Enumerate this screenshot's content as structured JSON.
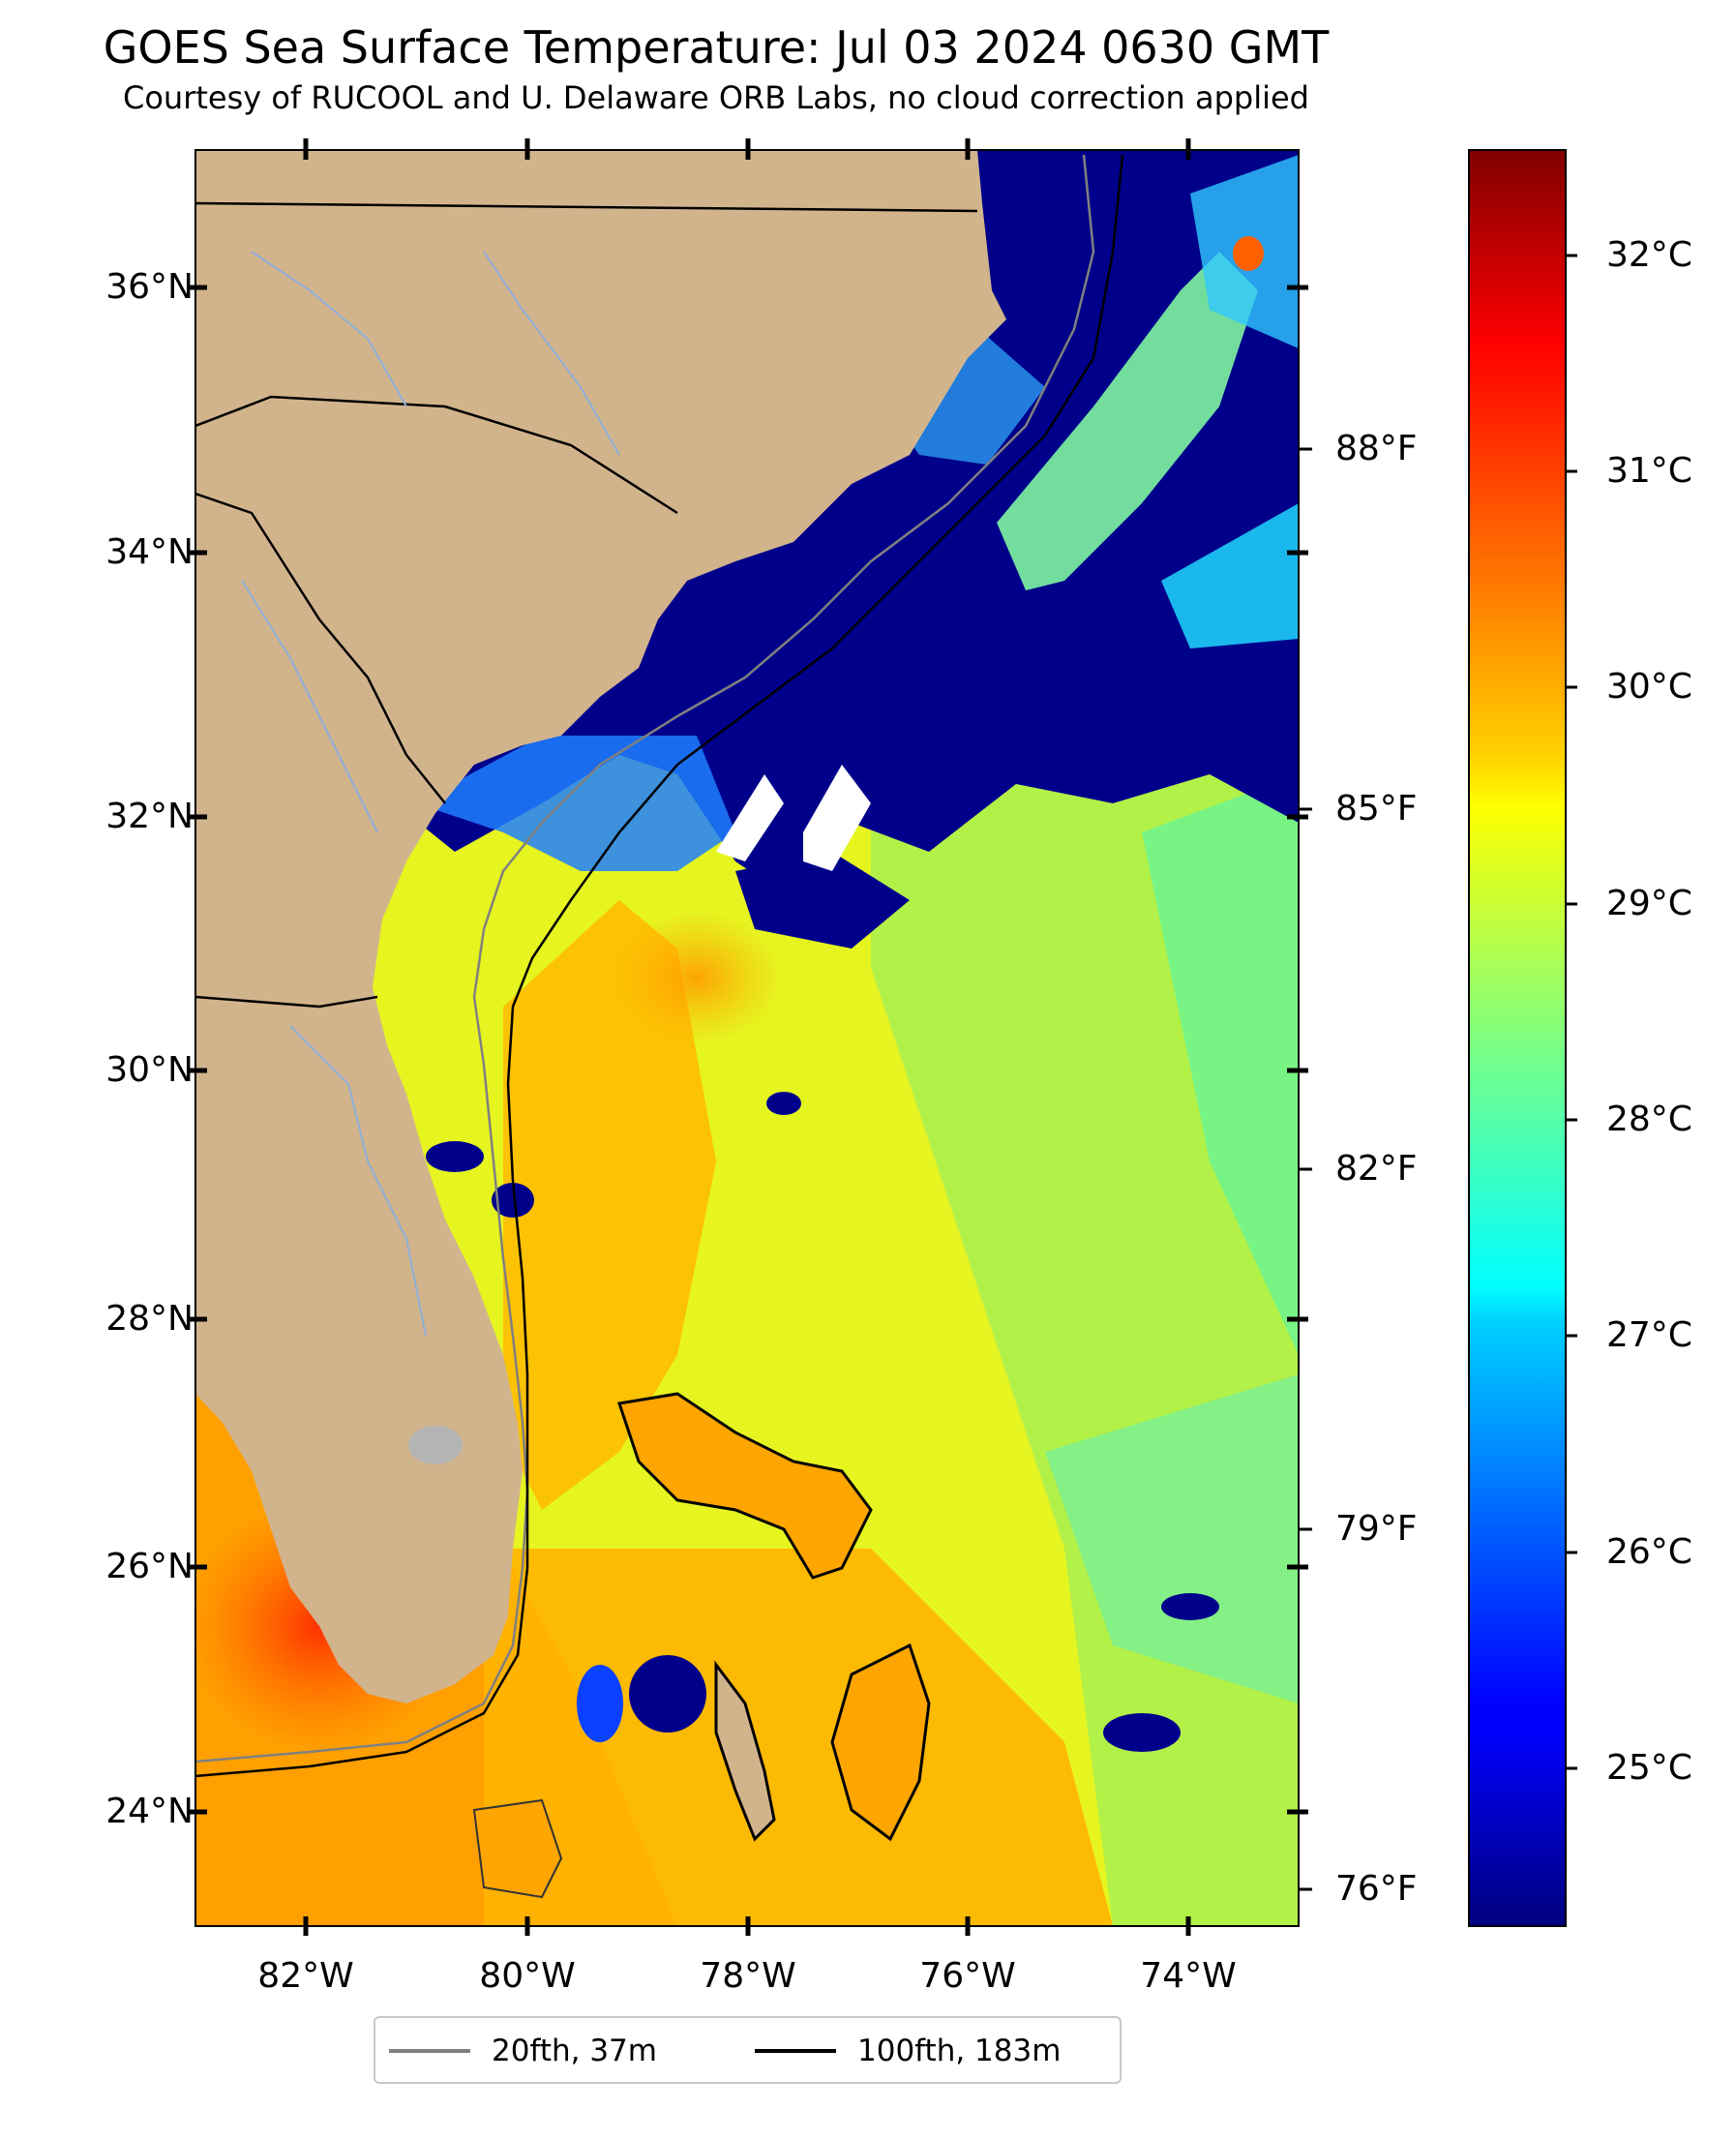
{
  "title": "GOES Sea Surface Temperature: Jul 03 2024 0630 GMT",
  "subtitle": "Courtesy of RUCOOL and U. Delaware ORB Labs, no cloud correction applied",
  "lat_labels": [
    "36°N",
    "34°N",
    "32°N",
    "30°N",
    "28°N",
    "26°N",
    "24°N"
  ],
  "lon_labels": [
    "82°W",
    "80°W",
    "78°W",
    "76°W",
    "74°W"
  ],
  "fahrenheit_labels": [
    "88°F",
    "85°F",
    "82°F",
    "79°F",
    "76°F"
  ],
  "celsius_labels": [
    "32°C",
    "31°C",
    "30°C",
    "29°C",
    "28°C",
    "27°C",
    "26°C",
    "25°C"
  ],
  "legend": [
    {
      "label": "20fth, 37m",
      "color": "#808080"
    },
    {
      "label": "100fth, 183m",
      "color": "#000000"
    }
  ],
  "colors": {
    "land": "#d2b48c",
    "cold": "#00008b",
    "cloudless_warm": "#ffa500",
    "colormap": "jet"
  },
  "colorbar_range_celsius": [
    24.3,
    32.5
  ]
}
